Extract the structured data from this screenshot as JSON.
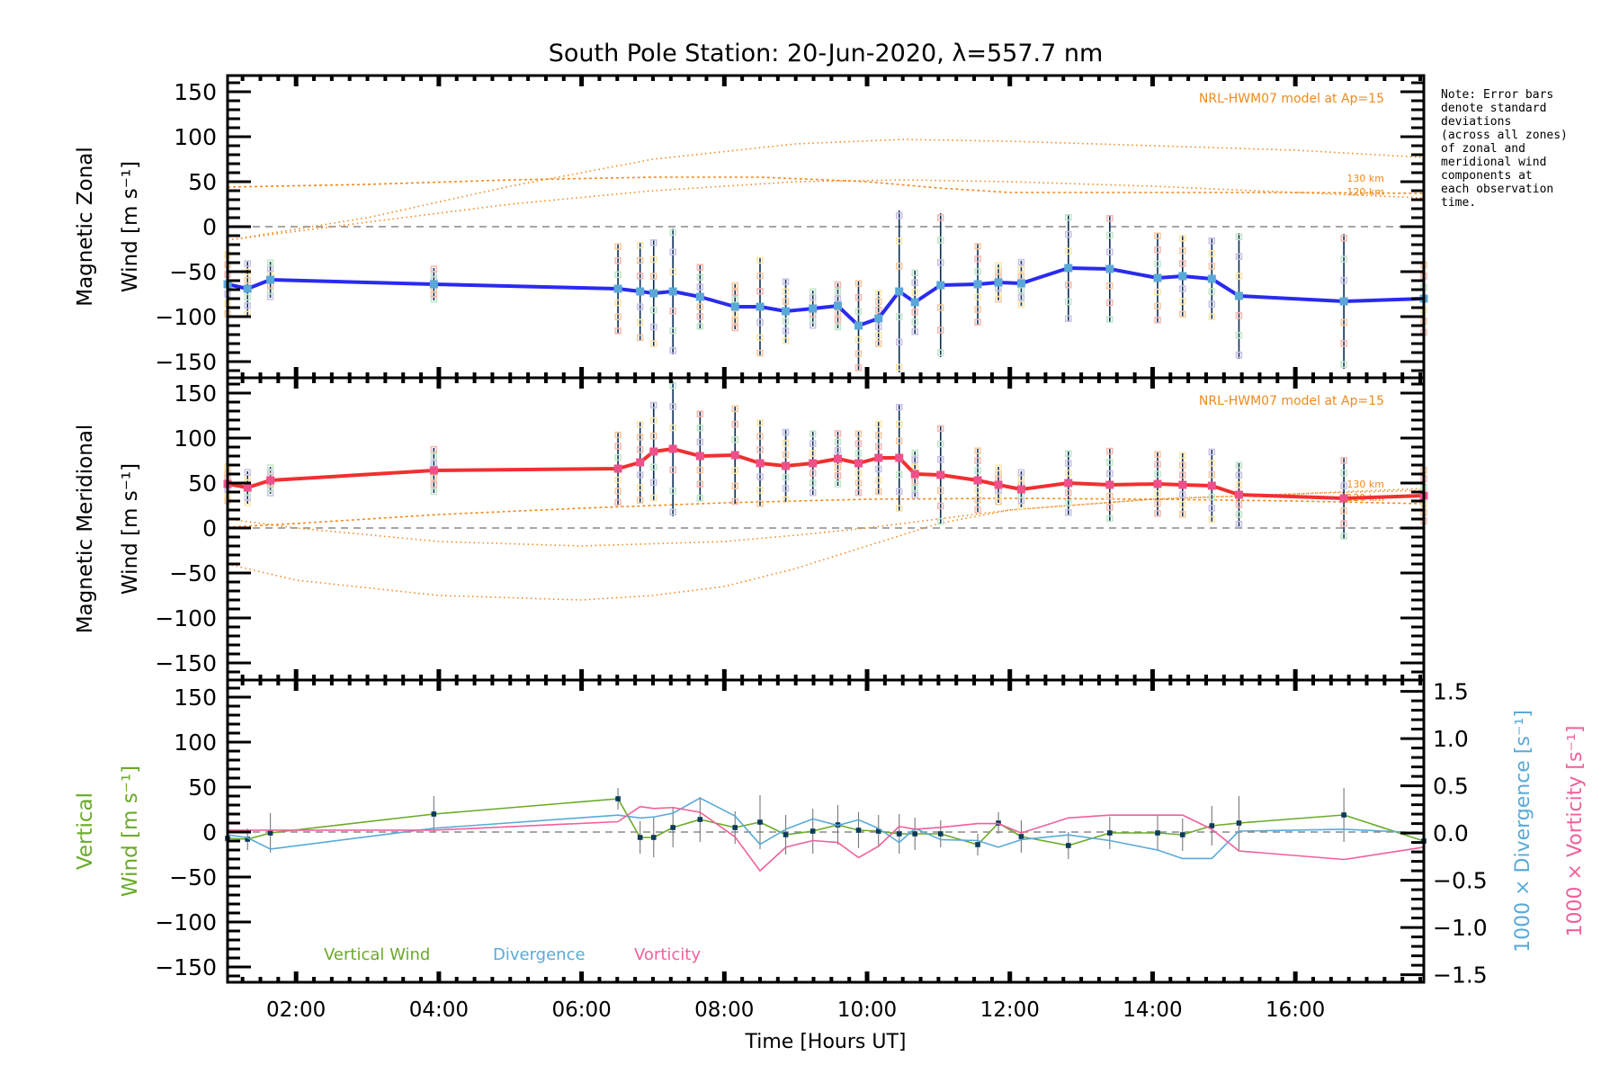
{
  "chart_data": {
    "type": "line",
    "title": "South Pole Station: 20-Jun-2020, λ=557.7 nm",
    "xlabel": "Time [Hours UT]",
    "xlim": [
      1.04,
      17.8
    ],
    "xticks": [
      {
        "value": 2,
        "label": "02:00"
      },
      {
        "value": 4,
        "label": "04:00"
      },
      {
        "value": 6,
        "label": "06:00"
      },
      {
        "value": 8,
        "label": "08:00"
      },
      {
        "value": 10,
        "label": "10:00"
      },
      {
        "value": 12,
        "label": "12:00"
      },
      {
        "value": 14,
        "label": "14:00"
      },
      {
        "value": 16,
        "label": "16:00"
      }
    ],
    "note": [
      "Note: Error bars",
      "denote standard",
      "deviations",
      "(across all zones)",
      "of zonal and",
      "meridional wind",
      "components at",
      "each observation",
      "time."
    ],
    "panels": [
      {
        "id": "zonal",
        "ylabel_line1": "Magnetic Zonal",
        "ylabel_line2": "Wind [m s⁻¹]",
        "ylim": [
          -168,
          168
        ],
        "yticks": [
          150,
          100,
          50,
          0,
          -50,
          -100,
          -150
        ],
        "ytick_labels": [
          "150",
          "100",
          "50",
          "0",
          "−50",
          "−100",
          "−150"
        ],
        "model_label": "NRL-HWM07 model at Ap=15",
        "model_alt_labels": [
          "130 km",
          "120 km"
        ],
        "colors": {
          "line": "#2a2af0",
          "marker": "#5aa8d8",
          "model": "#f08a1e",
          "errbar": "#0b2e55"
        },
        "series": [
          {
            "name": "Magnetic Zonal Wind",
            "x": [
              1.04,
              1.32,
              1.64,
              3.93,
              6.51,
              6.82,
              7.01,
              7.28,
              7.66,
              8.15,
              8.5,
              8.86,
              9.24,
              9.59,
              9.88,
              10.16,
              10.45,
              10.67,
              11.03,
              11.55,
              11.84,
              12.16,
              12.82,
              13.4,
              14.07,
              14.42,
              14.83,
              15.21,
              16.68,
              17.8
            ],
            "y": [
              -64,
              -69,
              -59,
              -64,
              -69,
              -72,
              -74,
              -72,
              -78,
              -89,
              -89,
              -94,
              -91,
              -88,
              -110,
              -102,
              -72,
              -84,
              -65,
              -64,
              -62,
              -63,
              -46,
              -47,
              -57,
              -55,
              -58,
              -77,
              -83,
              -80
            ],
            "err": [
              35,
              30,
              20,
              18,
              50,
              55,
              60,
              70,
              35,
              25,
              55,
              35,
              20,
              25,
              50,
              30,
              90,
              35,
              80,
              45,
              20,
              25,
              60,
              60,
              50,
              45,
              45,
              70,
              75,
              40
            ]
          }
        ],
        "model_curves": [
          {
            "name": "130 km dotted",
            "x": [
              1.04,
              3,
              5,
              7,
              9,
              10.5,
              12,
              14,
              16,
              17.8
            ],
            "y": [
              -15,
              10,
              45,
              75,
              92,
              97,
              95,
              90,
              85,
              77
            ]
          },
          {
            "name": "120 km dotted",
            "x": [
              1.04,
              3,
              5,
              7,
              9,
              10.5,
              12,
              14,
              16,
              17.8
            ],
            "y": [
              -15,
              5,
              25,
              40,
              50,
              52,
              50,
              45,
              38,
              32
            ]
          },
          {
            "name": "dashed",
            "x": [
              1.04,
              3,
              5,
              7,
              8.5,
              10,
              11,
              12,
              14,
              16,
              17.8
            ],
            "y": [
              44,
              47,
              52,
              55,
              55,
              50,
              43,
              38,
              38,
              38,
              37
            ]
          }
        ]
      },
      {
        "id": "meridional",
        "ylabel_line1": "Magnetic Meridional",
        "ylabel_line2": "Wind [m s⁻¹]",
        "ylim": [
          -169,
          167
        ],
        "yticks": [
          150,
          100,
          50,
          0,
          -50,
          -100,
          -150
        ],
        "ytick_labels": [
          "150",
          "100",
          "50",
          "0",
          "−50",
          "−100",
          "−150"
        ],
        "model_label": "NRL-HWM07 model at Ap=15",
        "model_alt_labels": [
          "130 km",
          "120 km"
        ],
        "colors": {
          "line": "#f03030",
          "marker": "#f0508a",
          "model": "#f08a1e",
          "errbar": "#0b2e55"
        },
        "series": [
          {
            "name": "Magnetic Meridional Wind",
            "x": [
              1.04,
              1.32,
              1.64,
              3.93,
              6.51,
              6.82,
              7.01,
              7.28,
              7.66,
              8.15,
              8.5,
              8.86,
              9.24,
              9.59,
              9.88,
              10.16,
              10.45,
              10.67,
              11.03,
              11.55,
              11.84,
              12.16,
              12.82,
              13.4,
              14.07,
              14.42,
              14.83,
              15.21,
              16.68,
              17.8
            ],
            "y": [
              49,
              45,
              53,
              64,
              66,
              73,
              85,
              88,
              80,
              81,
              72,
              69,
              72,
              77,
              72,
              78,
              78,
              60,
              59,
              53,
              48,
              43,
              50,
              48,
              49,
              48,
              47,
              37,
              33,
              36
            ],
            "err": [
              20,
              18,
              15,
              25,
              40,
              45,
              55,
              75,
              50,
              55,
              48,
              40,
              35,
              30,
              35,
              40,
              60,
              25,
              55,
              35,
              20,
              20,
              35,
              40,
              35,
              35,
              40,
              35,
              45,
              30
            ]
          }
        ],
        "model_curves": [
          {
            "name": "130 km dotted",
            "x": [
              1.04,
              2,
              4,
              6,
              7,
              8,
              9,
              10,
              11,
              12,
              14,
              16,
              17.8
            ],
            "y": [
              -40,
              -58,
              -75,
              -80,
              -75,
              -65,
              -45,
              -20,
              5,
              20,
              32,
              38,
              42
            ]
          },
          {
            "name": "120 km dotted",
            "x": [
              1.04,
              2,
              4,
              6,
              8,
              9,
              10,
              11,
              12,
              14,
              16,
              17.8
            ],
            "y": [
              10,
              0,
              -15,
              -20,
              -15,
              -8,
              0,
              10,
              20,
              32,
              38,
              44
            ]
          },
          {
            "name": "dashed",
            "x": [
              1.04,
              2,
              4,
              6,
              8,
              10,
              12,
              14,
              16,
              17.8
            ],
            "y": [
              1,
              5,
              15,
              22,
              28,
              32,
              33,
              32,
              30,
              27
            ]
          }
        ]
      },
      {
        "id": "vertical",
        "ylabel_line1": "Vertical",
        "ylabel_line2": "Wind [m s⁻¹]",
        "ylim": [
          -167,
          169
        ],
        "yticks": [
          150,
          100,
          50,
          0,
          -50,
          -100,
          -150
        ],
        "ytick_labels": [
          "150",
          "100",
          "50",
          "0",
          "−50",
          "−100",
          "−150"
        ],
        "y2label_div": "1000 × Divergence [s⁻¹]",
        "y2label_vort": "1000 × Vorticity [s⁻¹]",
        "y2lim": [
          -1.58,
          1.62
        ],
        "y2ticks": [
          1.5,
          1.0,
          0.5,
          0.0,
          -0.5,
          -1.0,
          -1.5
        ],
        "y2tick_labels": [
          "1.5",
          "1.0",
          "0.5",
          "0.0",
          "−0.5",
          "−1.0",
          "−1.5"
        ],
        "legend": [
          {
            "label": "Vertical Wind",
            "color": "#6aaa28"
          },
          {
            "label": "Divergence",
            "color": "#5aaad8"
          },
          {
            "label": "Vorticity",
            "color": "#f0609a"
          }
        ],
        "series": [
          {
            "name": "Vertical Wind",
            "axis": "left",
            "x": [
              1.04,
              1.32,
              1.64,
              3.93,
              6.51,
              6.82,
              7.01,
              7.28,
              7.66,
              8.15,
              8.5,
              8.86,
              9.24,
              9.59,
              9.88,
              10.16,
              10.45,
              10.67,
              11.03,
              11.55,
              11.84,
              12.16,
              12.82,
              13.4,
              14.07,
              14.42,
              14.83,
              15.21,
              16.68,
              17.8
            ],
            "y": [
              -7,
              -8,
              -1,
              20,
              37,
              -6,
              -6,
              5,
              14,
              5,
              11,
              -3,
              1,
              8,
              2,
              1,
              -2,
              -2,
              -2,
              -14,
              10,
              -5,
              -15,
              -1,
              -1,
              -3,
              7,
              10,
              19,
              -10
            ],
            "err": [
              15,
              12,
              22,
              20,
              12,
              18,
              22,
              22,
              25,
              18,
              30,
              22,
              25,
              22,
              20,
              18,
              22,
              18,
              15,
              12,
              12,
              18,
              15,
              18,
              20,
              18,
              22,
              30,
              30,
              15
            ]
          },
          {
            "name": "Divergence",
            "axis": "right",
            "x": [
              1.04,
              1.32,
              1.64,
              3.93,
              6.51,
              6.82,
              7.01,
              7.28,
              7.66,
              8.15,
              8.5,
              8.86,
              9.24,
              9.59,
              9.88,
              10.16,
              10.45,
              10.67,
              11.03,
              11.55,
              11.84,
              12.16,
              12.82,
              13.4,
              14.07,
              14.42,
              14.83,
              15.21,
              16.68,
              17.8
            ],
            "y": [
              -0.02,
              -0.05,
              -0.17,
              0.05,
              0.19,
              0.16,
              0.17,
              0.21,
              0.37,
              0.18,
              -0.12,
              0.04,
              0.15,
              0.08,
              0.14,
              0.05,
              -0.1,
              0.05,
              -0.07,
              -0.08,
              -0.15,
              -0.07,
              -0.02,
              -0.08,
              -0.18,
              -0.27,
              -0.27,
              0.02,
              0.04,
              0.0
            ]
          },
          {
            "name": "Vorticity",
            "axis": "right",
            "x": [
              1.04,
              1.32,
              1.64,
              3.93,
              6.51,
              6.82,
              7.01,
              7.28,
              7.66,
              8.15,
              8.5,
              8.86,
              9.24,
              9.59,
              9.88,
              10.16,
              10.45,
              10.67,
              11.03,
              11.55,
              11.84,
              12.16,
              12.82,
              13.4,
              14.07,
              14.42,
              14.83,
              15.21,
              16.68,
              17.8
            ],
            "y": [
              0.03,
              0.03,
              0.03,
              0.03,
              0.12,
              0.28,
              0.26,
              0.27,
              0.22,
              -0.04,
              -0.4,
              -0.15,
              -0.08,
              -0.1,
              -0.26,
              -0.14,
              0.07,
              0.04,
              0.06,
              0.1,
              0.1,
              0.0,
              0.16,
              0.19,
              0.19,
              0.19,
              0.04,
              -0.19,
              -0.28,
              -0.15
            ]
          }
        ]
      }
    ]
  }
}
